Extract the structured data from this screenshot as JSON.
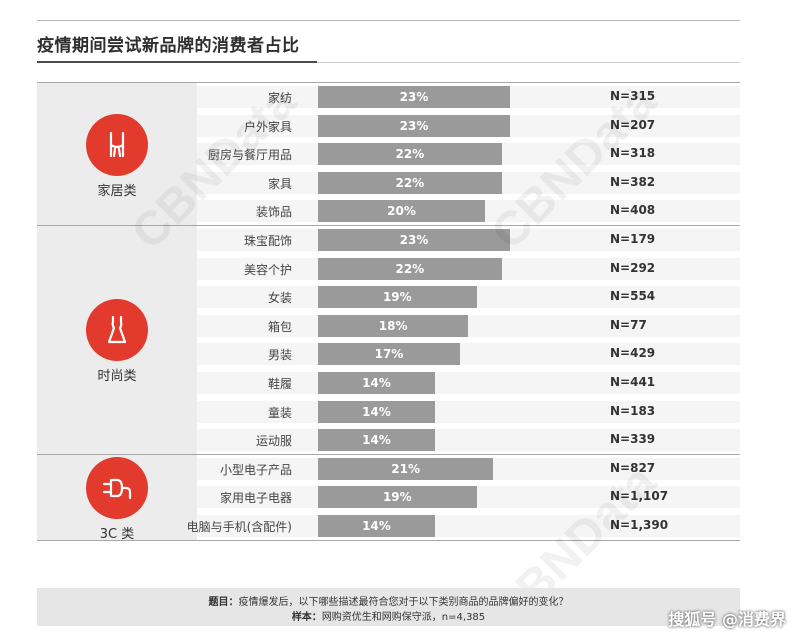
{
  "chart_data": {
    "type": "bar",
    "title": "疫情期间尝试新品牌的消费者占比",
    "unit": "%",
    "groups": [
      {
        "name": "家居类",
        "icon": "chair-icon",
        "rows": [
          {
            "label": "家纺",
            "value": 23,
            "value_text": "23%",
            "n": "N=315"
          },
          {
            "label": "户外家具",
            "value": 23,
            "value_text": "23%",
            "n": "N=207"
          },
          {
            "label": "厨房与餐厅用品",
            "value": 22,
            "value_text": "22%",
            "n": "N=318"
          },
          {
            "label": "家具",
            "value": 22,
            "value_text": "22%",
            "n": "N=382"
          },
          {
            "label": "装饰品",
            "value": 20,
            "value_text": "20%",
            "n": "N=408"
          }
        ]
      },
      {
        "name": "时尚类",
        "icon": "dress-icon",
        "rows": [
          {
            "label": "珠宝配饰",
            "value": 23,
            "value_text": "23%",
            "n": "N=179"
          },
          {
            "label": "美容个护",
            "value": 22,
            "value_text": "22%",
            "n": "N=292"
          },
          {
            "label": "女装",
            "value": 19,
            "value_text": "19%",
            "n": "N=554"
          },
          {
            "label": "箱包",
            "value": 18,
            "value_text": "18%",
            "n": "N=77"
          },
          {
            "label": "男装",
            "value": 17,
            "value_text": "17%",
            "n": "N=429"
          },
          {
            "label": "鞋履",
            "value": 14,
            "value_text": "14%",
            "n": "N=441"
          },
          {
            "label": "童装",
            "value": 14,
            "value_text": "14%",
            "n": "N=183"
          },
          {
            "label": "运动服",
            "value": 14,
            "value_text": "14%",
            "n": "N=339"
          }
        ]
      },
      {
        "name": "3C 类",
        "icon": "plug-icon",
        "rows": [
          {
            "label": "小型电子产品",
            "value": 21,
            "value_text": "21%",
            "n": "N=827"
          },
          {
            "label": "家用电子电器",
            "value": 19,
            "value_text": "19%",
            "n": "N=1,107"
          },
          {
            "label": "电脑与手机(含配件)",
            "value": 14,
            "value_text": "14%",
            "n": "N=1,390"
          }
        ]
      }
    ]
  },
  "footer": {
    "question_label": "题目：",
    "question_text": "疫情爆发后，以下哪些描述最符合您对于以下类别商品的品牌偏好的变化？",
    "sample_label": "样本：",
    "sample_text": "网购资优生和网购保守派，n=4,385"
  },
  "watermark": "CBNData",
  "brand": "搜狐号 @消费界",
  "colors": {
    "accent": "#e23b2e",
    "bar": "#9a9a9a",
    "panel": "#ececec",
    "band": "#f5f5f5"
  }
}
